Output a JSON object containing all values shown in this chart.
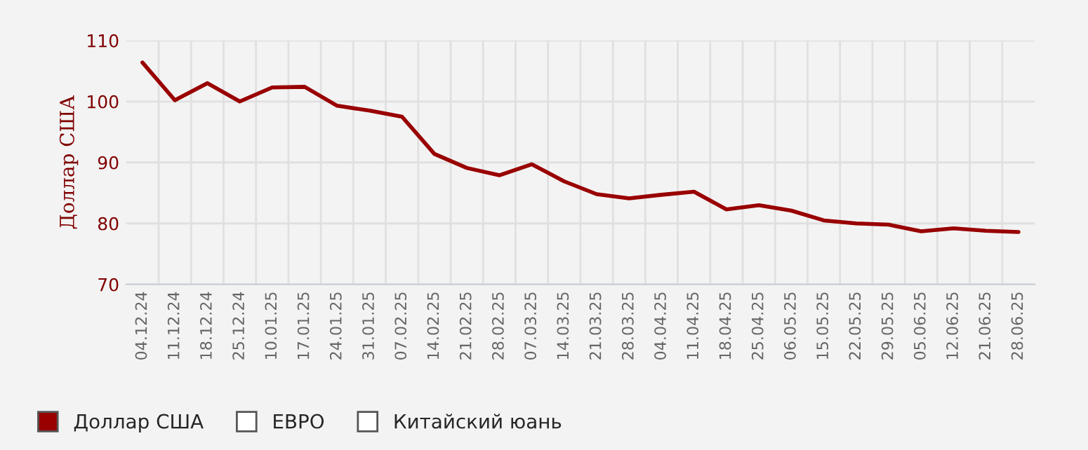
{
  "chart_data": {
    "type": "line",
    "ylabel": "Доллар США",
    "categories": [
      "04.12.24",
      "11.12.24",
      "18.12.24",
      "25.12.24",
      "10.01.25",
      "17.01.25",
      "24.01.25",
      "31.01.25",
      "07.02.25",
      "14.02.25",
      "21.02.25",
      "28.02.25",
      "07.03.25",
      "14.03.25",
      "21.03.25",
      "28.03.25",
      "04.04.25",
      "11.04.25",
      "18.04.25",
      "25.04.25",
      "06.05.25",
      "15.05.25",
      "22.05.25",
      "29.05.25",
      "05.06.25",
      "12.06.25",
      "21.06.25",
      "28.06.25"
    ],
    "series": [
      {
        "name": "Доллар США",
        "color": "#990000",
        "values": [
          106.4,
          100.2,
          103.0,
          100.0,
          102.3,
          102.4,
          99.3,
          98.5,
          97.5,
          91.4,
          89.1,
          87.9,
          89.7,
          86.9,
          84.8,
          84.1,
          84.7,
          85.2,
          82.3,
          83.0,
          82.1,
          80.5,
          80.0,
          79.8,
          78.7,
          79.2,
          78.8,
          78.6
        ]
      },
      {
        "name": "ЕВРО",
        "values": [
          null,
          null,
          null,
          null,
          null,
          null,
          null,
          null,
          null,
          null,
          null,
          null,
          null,
          null,
          null,
          null,
          null,
          null,
          null,
          null,
          null,
          null,
          null,
          null,
          null,
          null,
          null,
          null
        ]
      },
      {
        "name": "Китайский юань",
        "values": [
          null,
          null,
          null,
          null,
          null,
          null,
          null,
          null,
          null,
          null,
          null,
          null,
          null,
          null,
          null,
          null,
          null,
          null,
          null,
          null,
          null,
          null,
          null,
          null,
          null,
          null,
          null,
          null
        ]
      }
    ],
    "ylim": [
      70,
      110
    ],
    "yticks": [
      70,
      80,
      90,
      100,
      110
    ],
    "grid": true,
    "legend": "bottom left",
    "marker": "none",
    "line_style": "solid"
  }
}
